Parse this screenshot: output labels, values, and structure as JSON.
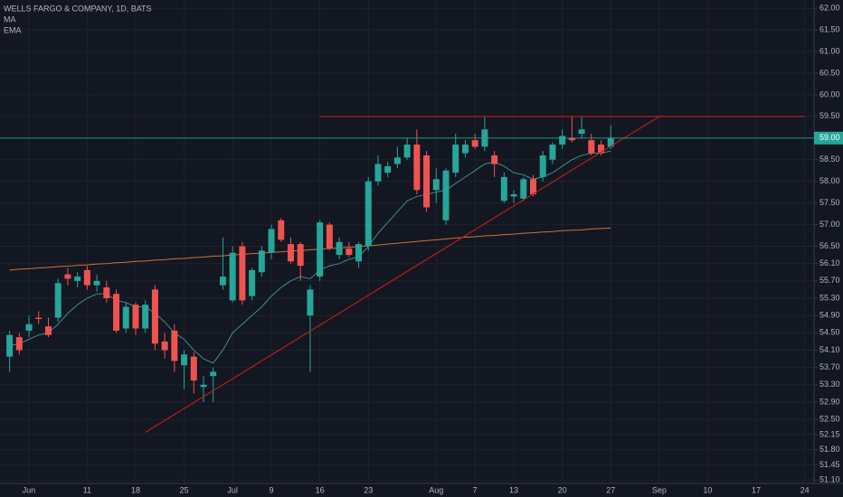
{
  "chart_data": {
    "type": "candlestick",
    "title": "WELLS FARGO & COMPANY, 1D, BATS",
    "background": "#131722",
    "grid": true,
    "up_color": "#26a69a",
    "down_color": "#ef5350",
    "categories": [
      null,
      null,
      "Jun",
      null,
      null,
      null,
      null,
      null,
      "11",
      null,
      null,
      null,
      null,
      "18",
      null,
      null,
      null,
      null,
      "25",
      null,
      null,
      null,
      null,
      "Jul",
      null,
      null,
      null,
      "9",
      null,
      null,
      null,
      null,
      "16",
      null,
      null,
      null,
      null,
      "23",
      null,
      null,
      null,
      null,
      null,
      null,
      "Aug",
      null,
      null,
      null,
      "7",
      null,
      null,
      null,
      "13",
      null,
      null,
      null,
      null,
      "20",
      null,
      null,
      null,
      null,
      "27",
      null,
      null,
      null,
      null,
      "Sep",
      null,
      null,
      null,
      null,
      "10",
      null,
      null,
      null,
      null,
      "17",
      null,
      null,
      null,
      null,
      "24"
    ],
    "open": [
      53.95,
      54.4,
      54.55,
      54.85,
      54.65,
      54.85,
      55.85,
      55.7,
      55.95,
      55.6,
      55.55,
      55.4,
      54.6,
      55.15,
      54.6,
      55.5,
      54.3,
      54.55,
      53.75,
      53.95,
      53.25,
      53.5,
      55.6,
      55.25,
      56.5,
      55.35,
      55.9,
      56.35,
      57.1,
      56.55,
      56.55,
      54.9,
      55.8,
      57.0,
      56.3,
      56.45,
      56.15,
      56.5,
      58.0,
      58.2,
      58.4,
      58.55,
      58.85,
      58.6,
      57.8,
      57.1,
      58.2,
      58.65,
      58.95,
      58.8,
      58.6,
      57.55,
      57.65,
      57.6,
      58.05,
      58.1,
      58.5,
      58.85,
      59.0,
      59.1,
      58.95,
      58.85,
      58.8,
      null,
      null,
      null,
      null,
      null,
      null,
      null,
      null,
      null,
      null,
      null,
      null,
      null,
      null,
      null,
      null,
      null,
      null,
      null,
      null
    ],
    "high": [
      54.55,
      54.5,
      54.9,
      55.0,
      54.85,
      55.75,
      56.0,
      55.9,
      56.05,
      55.85,
      55.7,
      55.5,
      55.2,
      55.2,
      55.25,
      55.6,
      54.5,
      54.7,
      54.1,
      54.05,
      53.5,
      53.7,
      56.7,
      56.5,
      56.6,
      56.0,
      56.5,
      57.0,
      57.15,
      56.7,
      56.6,
      55.6,
      57.1,
      57.05,
      56.7,
      56.6,
      56.6,
      58.1,
      58.6,
      58.45,
      58.8,
      59.0,
      59.2,
      58.7,
      58.3,
      58.3,
      59.1,
      58.95,
      59.1,
      59.5,
      58.7,
      58.2,
      57.8,
      58.1,
      58.15,
      58.7,
      58.9,
      59.2,
      59.5,
      59.5,
      59.1,
      58.95,
      59.3,
      null,
      null,
      null,
      null,
      null,
      null,
      null,
      null,
      null,
      null,
      null,
      null,
      null,
      null,
      null,
      null,
      null,
      null,
      null,
      null
    ],
    "low": [
      53.6,
      54.0,
      54.4,
      54.7,
      54.4,
      54.75,
      55.6,
      55.55,
      55.5,
      55.45,
      55.2,
      54.5,
      54.5,
      54.45,
      54.5,
      54.1,
      53.9,
      53.6,
      53.2,
      53.1,
      52.9,
      52.9,
      55.5,
      55.2,
      55.15,
      55.25,
      55.8,
      56.2,
      56.6,
      56.1,
      55.7,
      53.6,
      55.7,
      56.4,
      56.2,
      56.25,
      56.0,
      56.4,
      57.9,
      58.1,
      58.3,
      58.5,
      57.7,
      57.3,
      57.5,
      57.0,
      58.1,
      58.55,
      58.75,
      58.7,
      58.1,
      57.5,
      57.5,
      57.55,
      57.65,
      58.0,
      58.4,
      58.75,
      58.9,
      59.0,
      58.6,
      58.6,
      58.75,
      null,
      null,
      null,
      null,
      null,
      null,
      null,
      null,
      null,
      null,
      null,
      null,
      null,
      null,
      null,
      null,
      null,
      null,
      null,
      null
    ],
    "close": [
      54.45,
      54.1,
      54.7,
      54.82,
      54.45,
      55.65,
      55.75,
      55.8,
      55.6,
      55.7,
      55.3,
      54.55,
      55.1,
      54.6,
      55.15,
      54.25,
      54.1,
      53.85,
      54.0,
      53.4,
      53.3,
      53.6,
      55.8,
      56.35,
      55.25,
      55.95,
      56.4,
      56.9,
      56.65,
      56.15,
      56.05,
      55.5,
      57.05,
      56.45,
      56.6,
      56.3,
      56.55,
      58.0,
      58.4,
      58.35,
      58.55,
      58.85,
      57.8,
      57.4,
      58.05,
      58.25,
      58.85,
      58.85,
      58.8,
      59.2,
      58.4,
      58.1,
      57.7,
      58.05,
      57.7,
      58.6,
      58.85,
      59.05,
      58.95,
      59.2,
      58.65,
      58.65,
      59.0,
      null,
      null,
      null,
      null,
      null,
      null,
      null,
      null,
      null,
      null,
      null,
      null,
      null,
      null,
      null,
      null,
      null,
      null,
      null,
      null
    ],
    "indicators": [
      {
        "name": "MA",
        "color": "#c8743a",
        "values": [
          55.95,
          55.97,
          55.98,
          56.0,
          56.01,
          56.03,
          56.04,
          56.06,
          56.07,
          56.09,
          56.1,
          56.12,
          56.13,
          56.15,
          56.16,
          56.18,
          56.19,
          56.21,
          56.22,
          56.24,
          56.25,
          56.27,
          56.28,
          56.3,
          56.31,
          56.33,
          56.34,
          56.36,
          56.37,
          56.39,
          56.4,
          56.42,
          56.43,
          56.45,
          56.46,
          56.48,
          56.49,
          56.51,
          56.53,
          56.55,
          56.57,
          56.59,
          56.61,
          56.63,
          56.65,
          56.67,
          56.69,
          56.71,
          56.72,
          56.74,
          56.75,
          56.77,
          56.78,
          56.8,
          56.81,
          56.83,
          56.84,
          56.86,
          56.87,
          56.88,
          56.9,
          56.91,
          56.92,
          null,
          null,
          null,
          null,
          null,
          null,
          null,
          null,
          null,
          null,
          null,
          null,
          null,
          null,
          null,
          null,
          null,
          null,
          null,
          null
        ]
      },
      {
        "name": "EMA",
        "color": "#3e8e8a",
        "values": [
          54.2,
          54.25,
          54.35,
          54.45,
          54.5,
          54.7,
          54.95,
          55.15,
          55.3,
          55.4,
          55.4,
          55.25,
          55.2,
          55.1,
          55.1,
          54.95,
          54.75,
          54.5,
          54.35,
          54.1,
          53.9,
          53.8,
          54.1,
          54.5,
          54.7,
          54.9,
          55.1,
          55.35,
          55.55,
          55.7,
          55.8,
          55.75,
          55.95,
          56.05,
          56.1,
          56.2,
          56.25,
          56.5,
          56.8,
          57.05,
          57.3,
          57.55,
          57.65,
          57.7,
          57.75,
          57.8,
          57.95,
          58.1,
          58.25,
          58.4,
          58.45,
          58.35,
          58.2,
          58.15,
          58.05,
          58.1,
          58.2,
          58.35,
          58.5,
          58.6,
          58.65,
          58.65,
          58.7,
          null,
          null,
          null,
          null,
          null,
          null,
          null,
          null,
          null,
          null,
          null,
          null,
          null,
          null,
          null,
          null,
          null,
          null,
          null,
          null
        ]
      }
    ],
    "trendlines": [
      {
        "x": [
          14,
          67
        ],
        "y": [
          52.2,
          59.5
        ],
        "color": "#b71c1c"
      },
      {
        "x": [
          32,
          82
        ],
        "y": [
          59.5,
          59.5
        ],
        "color": "#b71c1c"
      }
    ],
    "last_price": {
      "value": 59.0,
      "label": "59.00",
      "color": "#26a69a"
    },
    "ylim": [
      51.02,
      62.19
    ],
    "yticks": [
      {
        "value": 62,
        "label": "62.00"
      },
      {
        "value": 61.5,
        "label": "61.50"
      },
      {
        "value": 61,
        "label": "61.00"
      },
      {
        "value": 60.5,
        "label": "60.50"
      },
      {
        "value": 60,
        "label": "60.00"
      },
      {
        "value": 59.5,
        "label": "59.50"
      },
      {
        "value": 58.5,
        "label": "58.50"
      },
      {
        "value": 58,
        "label": "58.00"
      },
      {
        "value": 57.5,
        "label": "57.50"
      },
      {
        "value": 57,
        "label": "57.00"
      },
      {
        "value": 56.5,
        "label": "56.50"
      },
      {
        "value": 56.1,
        "label": "56.10"
      },
      {
        "value": 55.7,
        "label": "55.70"
      },
      {
        "value": 55.3,
        "label": "55.30"
      },
      {
        "value": 54.9,
        "label": "54.90"
      },
      {
        "value": 54.5,
        "label": "54.50"
      },
      {
        "value": 54.1,
        "label": "54.10"
      },
      {
        "value": 53.7,
        "label": "53.70"
      },
      {
        "value": 53.3,
        "label": "53.30"
      },
      {
        "value": 52.9,
        "label": "52.90"
      },
      {
        "value": 52.5,
        "label": "52.50"
      },
      {
        "value": 52.15,
        "label": "52.15"
      },
      {
        "value": 51.8,
        "label": "51.80"
      },
      {
        "value": 51.45,
        "label": "51.45"
      },
      {
        "value": 51.1,
        "label": "51.10"
      }
    ]
  }
}
